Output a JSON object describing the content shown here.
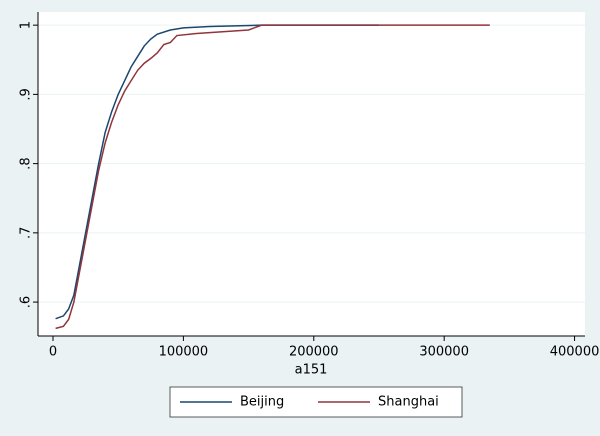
{
  "chart_data": {
    "type": "line",
    "x_label": "a151",
    "series": [
      {
        "name": "Beijing",
        "color": "#1a476f",
        "x": [
          2000,
          8000,
          12000,
          16000,
          20000,
          25000,
          30000,
          35000,
          40000,
          45000,
          50000,
          55000,
          60000,
          65000,
          70000,
          75000,
          80000,
          90000,
          100000,
          120000,
          160000,
          250000
        ],
        "values": [
          0.576,
          0.58,
          0.59,
          0.61,
          0.65,
          0.7,
          0.75,
          0.8,
          0.845,
          0.875,
          0.9,
          0.92,
          0.94,
          0.955,
          0.97,
          0.98,
          0.987,
          0.993,
          0.996,
          0.998,
          1.0,
          1.0
        ]
      },
      {
        "name": "Shanghai",
        "color": "#90353b",
        "x": [
          2000,
          8000,
          12000,
          16000,
          20000,
          25000,
          30000,
          35000,
          40000,
          45000,
          50000,
          55000,
          60000,
          65000,
          70000,
          75000,
          80000,
          85000,
          90000,
          95000,
          110000,
          150000,
          160000,
          335000
        ],
        "values": [
          0.562,
          0.565,
          0.575,
          0.6,
          0.64,
          0.69,
          0.74,
          0.79,
          0.83,
          0.86,
          0.885,
          0.905,
          0.92,
          0.935,
          0.945,
          0.952,
          0.96,
          0.972,
          0.975,
          0.985,
          0.988,
          0.993,
          1.0,
          1.0
        ]
      }
    ],
    "xlim": [
      -11500,
      408000
    ],
    "xticks": [
      0,
      100000,
      200000,
      300000,
      400000
    ],
    "ylim": [
      0.551,
      1.019
    ],
    "yticks": [
      {
        "value": 0.6,
        "label": ".6"
      },
      {
        "value": 0.7,
        "label": ".7"
      },
      {
        "value": 0.8,
        "label": ".8"
      },
      {
        "value": 0.9,
        "label": ".9"
      },
      1
    ],
    "grid": true,
    "legend": "bottom"
  }
}
